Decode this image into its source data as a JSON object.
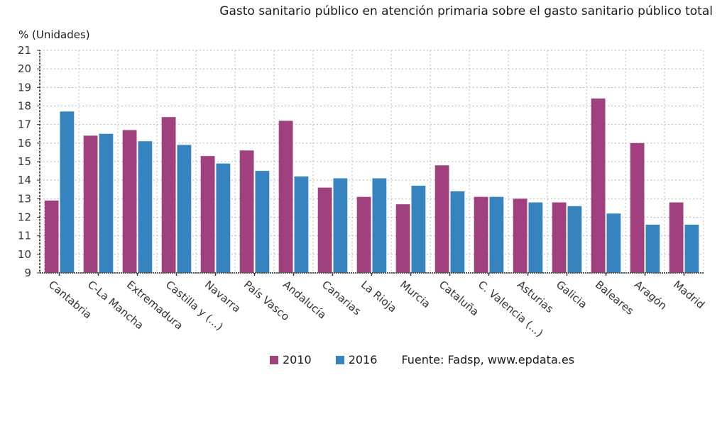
{
  "chart_data": {
    "type": "bar",
    "title": "Gasto sanitario público en atención primaria sobre el gasto sanitario público total",
    "ylabel": "% (Unidades)",
    "xlabel": "",
    "ylim": [
      9,
      21
    ],
    "yticks": [
      9,
      10,
      11,
      12,
      13,
      14,
      15,
      16,
      17,
      18,
      19,
      20,
      21
    ],
    "grid": true,
    "legend_position": "bottom",
    "categories": [
      "Cantabria",
      "C-La Mancha",
      "Extremadura",
      "Castilla y (...)",
      "Navarra",
      "País Vasco",
      "Andalucía",
      "Canarias",
      "La Rioja",
      "Murcia",
      "Cataluña",
      "C. Valencia (...)",
      "Asturias",
      "Galicia",
      "Baleares",
      "Aragón",
      "Madrid"
    ],
    "series": [
      {
        "name": "2010",
        "color": "#a0407e",
        "values": [
          12.9,
          16.4,
          16.7,
          17.4,
          15.3,
          15.6,
          17.2,
          13.6,
          13.1,
          12.7,
          14.8,
          13.1,
          13.0,
          12.8,
          18.4,
          16.0,
          12.8
        ]
      },
      {
        "name": "2016",
        "color": "#3584bf",
        "values": [
          17.7,
          16.5,
          16.1,
          15.9,
          14.9,
          14.5,
          14.2,
          14.1,
          14.1,
          13.7,
          13.4,
          13.1,
          12.8,
          12.6,
          12.2,
          11.6,
          11.6
        ]
      }
    ],
    "source": "Fuente: Fadsp, www.epdata.es"
  }
}
